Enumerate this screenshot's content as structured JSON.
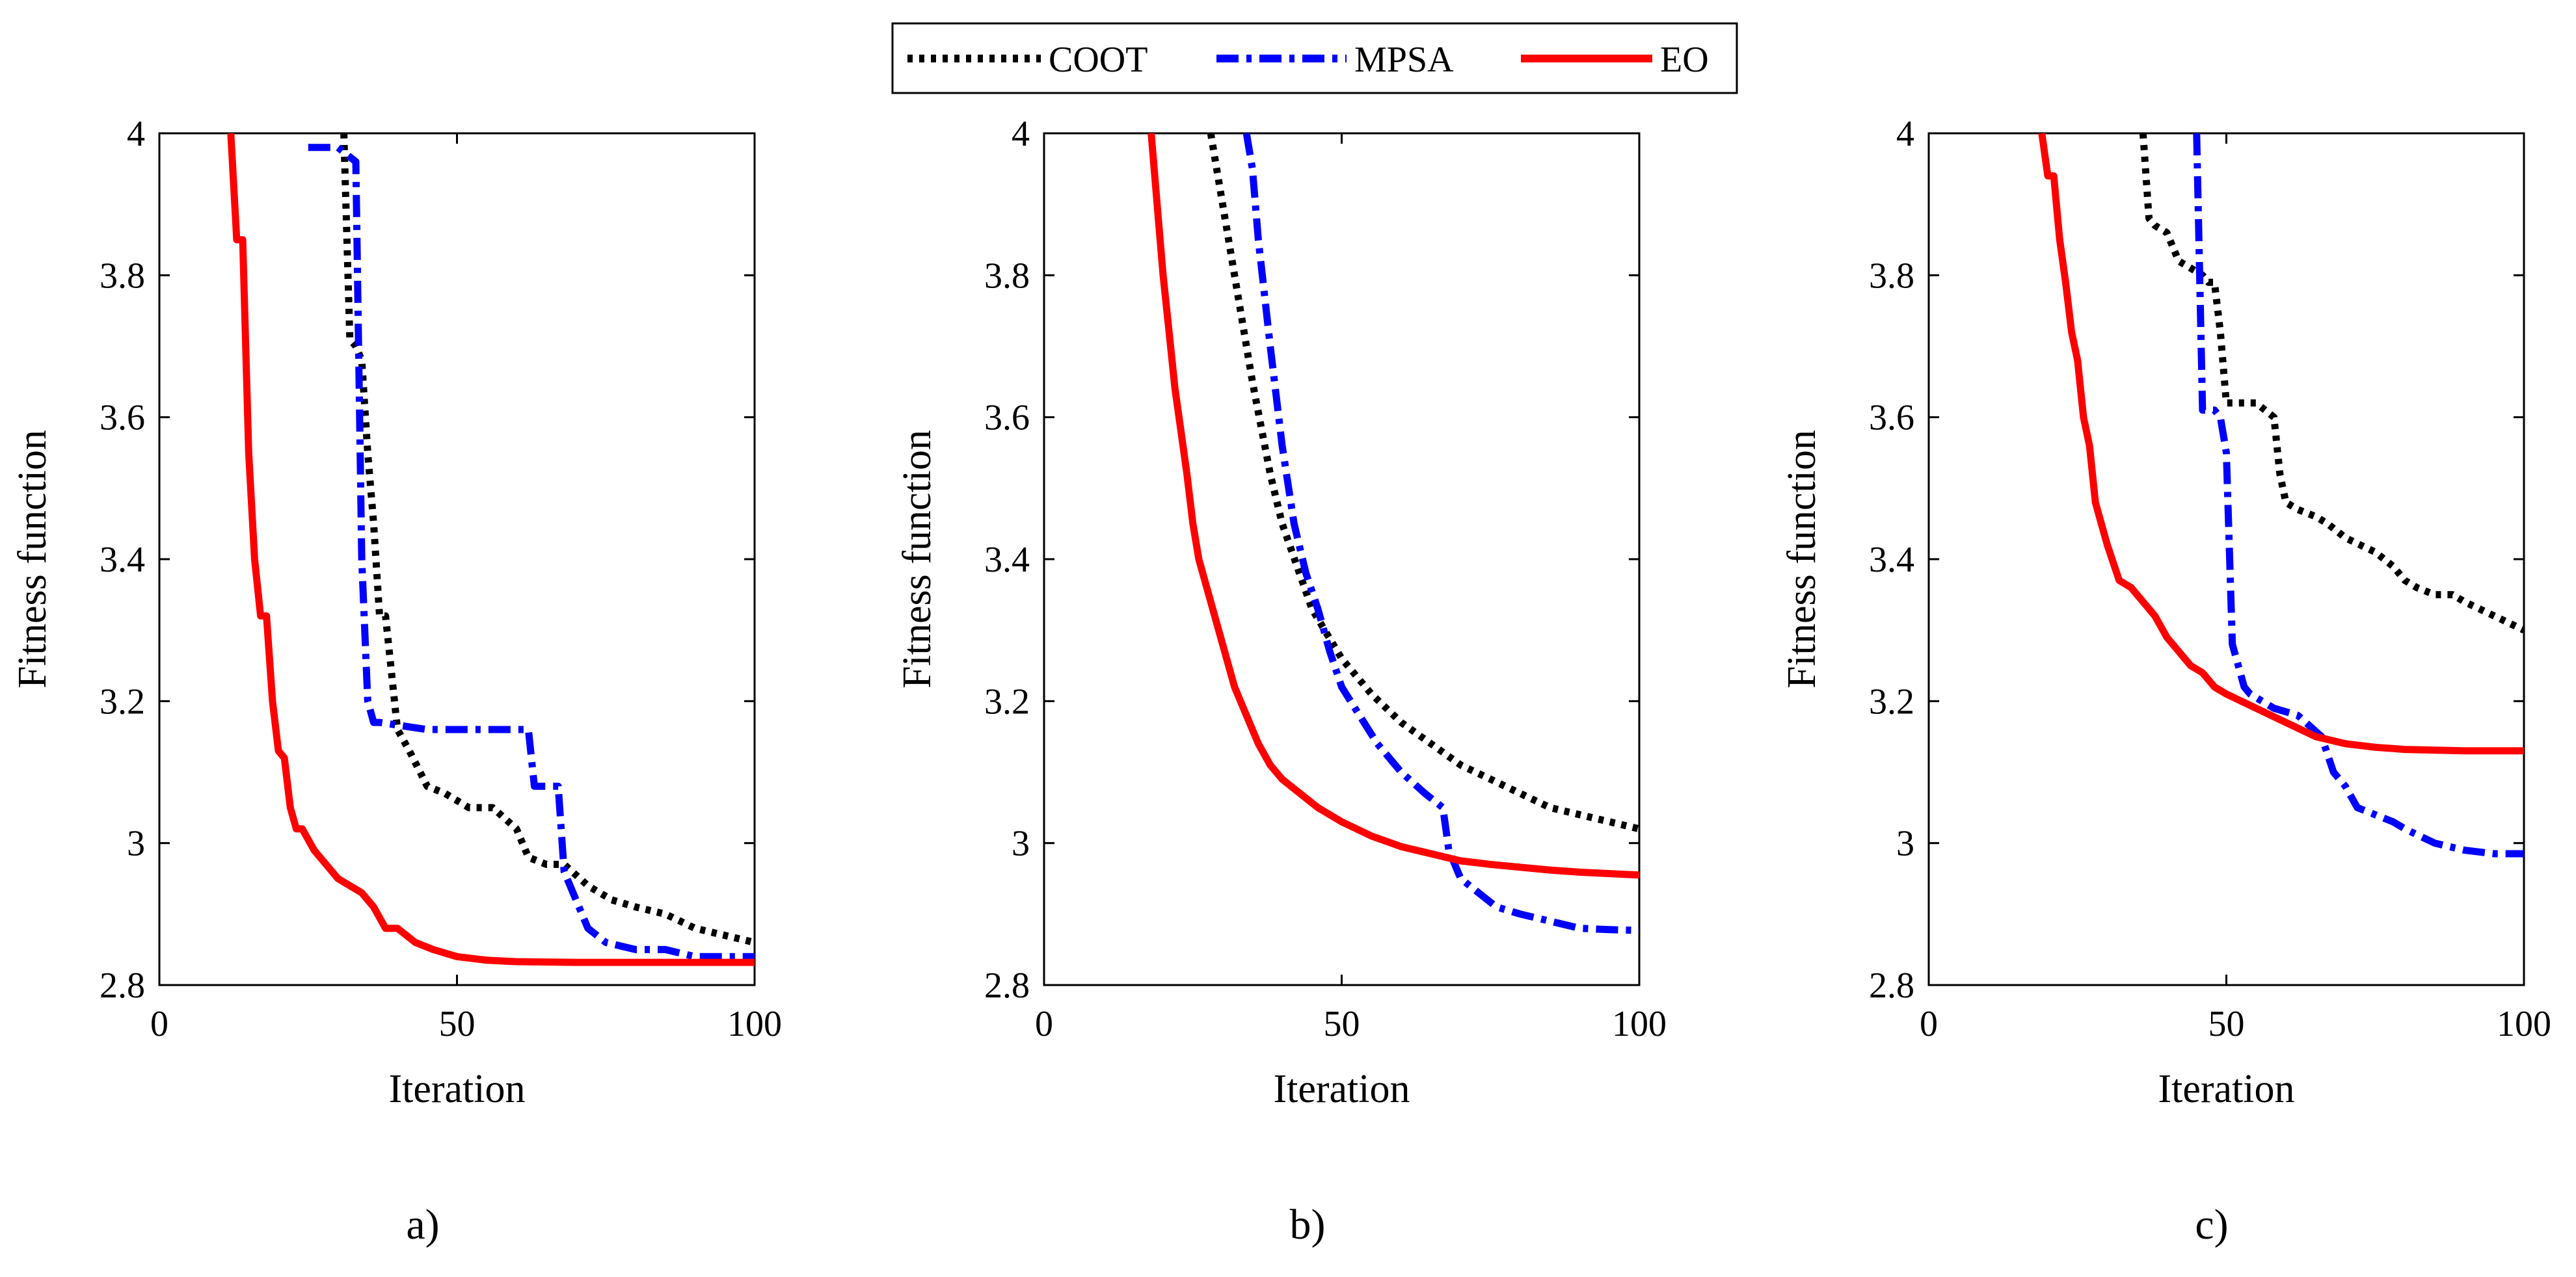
{
  "legend": {
    "items": [
      {
        "label": "COOT",
        "color": "#000000",
        "style": "dotted"
      },
      {
        "label": "MPSA",
        "color": "#0000ff",
        "style": "dashdot"
      },
      {
        "label": "EO",
        "color": "#ff0000",
        "style": "solid"
      }
    ]
  },
  "chart_data": [
    {
      "type": "line",
      "caption": "a)",
      "xlabel": "Iteration",
      "ylabel": "Fitness function",
      "xlim": [
        0,
        100
      ],
      "ylim": [
        2.8,
        4
      ],
      "xticks": [
        "0",
        "50",
        "100"
      ],
      "yticks": [
        "2.8",
        "3",
        "3.2",
        "3.4",
        "3.6",
        "3.8",
        "4"
      ],
      "grid": false,
      "series": [
        {
          "name": "COOT",
          "color": "#000000",
          "style": "dotted",
          "x": [
            31,
            32,
            33,
            34,
            35,
            36,
            37,
            38,
            40,
            42,
            45,
            48,
            52,
            56,
            60,
            62,
            65,
            68,
            72,
            76,
            80,
            85,
            90,
            95,
            100
          ],
          "y": [
            4.0,
            3.71,
            3.7,
            3.68,
            3.55,
            3.45,
            3.32,
            3.32,
            3.16,
            3.13,
            3.08,
            3.07,
            3.05,
            3.05,
            3.02,
            2.98,
            2.97,
            2.97,
            2.94,
            2.92,
            2.91,
            2.9,
            2.88,
            2.87,
            2.86
          ]
        },
        {
          "name": "MPSA",
          "color": "#0000ff",
          "style": "dashdot",
          "x": [
            25,
            26,
            30,
            33,
            34,
            35,
            36,
            37,
            45,
            50,
            55,
            62,
            63,
            67,
            68,
            70,
            72,
            75,
            80,
            85,
            90,
            95,
            100
          ],
          "y": [
            3.98,
            3.98,
            3.98,
            3.96,
            3.4,
            3.2,
            3.17,
            3.17,
            3.16,
            3.16,
            3.16,
            3.16,
            3.08,
            3.08,
            2.96,
            2.92,
            2.88,
            2.86,
            2.85,
            2.85,
            2.84,
            2.84,
            2.84
          ]
        },
        {
          "name": "EO",
          "color": "#ff0000",
          "style": "solid",
          "x": [
            12,
            13,
            14,
            15,
            16,
            17,
            18,
            19,
            20,
            21,
            22,
            23,
            24,
            26,
            28,
            30,
            32,
            34,
            36,
            38,
            40,
            43,
            46,
            50,
            55,
            60,
            70,
            80,
            90,
            100
          ],
          "y": [
            4.0,
            3.85,
            3.85,
            3.55,
            3.4,
            3.32,
            3.32,
            3.2,
            3.13,
            3.12,
            3.05,
            3.02,
            3.02,
            2.99,
            2.97,
            2.95,
            2.94,
            2.93,
            2.91,
            2.88,
            2.88,
            2.86,
            2.85,
            2.84,
            2.835,
            2.833,
            2.832,
            2.832,
            2.832,
            2.832
          ]
        }
      ]
    },
    {
      "type": "line",
      "caption": "b)",
      "xlabel": "Iteration",
      "ylabel": "Fitness function",
      "xlim": [
        0,
        100
      ],
      "ylim": [
        2.8,
        4
      ],
      "xticks": [
        "0",
        "50",
        "100"
      ],
      "yticks": [
        "2.8",
        "3",
        "3.2",
        "3.4",
        "3.6",
        "3.8",
        "4"
      ],
      "grid": false,
      "series": [
        {
          "name": "COOT",
          "color": "#000000",
          "style": "dotted",
          "x": [
            28,
            30,
            32,
            35,
            38,
            40,
            45,
            50,
            55,
            60,
            65,
            70,
            75,
            80,
            85,
            90,
            95,
            100
          ],
          "y": [
            4.0,
            3.9,
            3.8,
            3.65,
            3.52,
            3.45,
            3.33,
            3.26,
            3.21,
            3.17,
            3.14,
            3.11,
            3.09,
            3.07,
            3.05,
            3.04,
            3.03,
            3.02
          ]
        },
        {
          "name": "MPSA",
          "color": "#0000ff",
          "style": "dashdot",
          "x": [
            34,
            35,
            36,
            38,
            40,
            42,
            44,
            46,
            48,
            50,
            53,
            56,
            60,
            64,
            67,
            68,
            70,
            73,
            76,
            80,
            85,
            90,
            95,
            100
          ],
          "y": [
            4.0,
            3.95,
            3.85,
            3.7,
            3.56,
            3.45,
            3.38,
            3.33,
            3.27,
            3.22,
            3.18,
            3.14,
            3.1,
            3.07,
            3.05,
            2.99,
            2.95,
            2.93,
            2.91,
            2.9,
            2.89,
            2.88,
            2.878,
            2.877
          ]
        },
        {
          "name": "EO",
          "color": "#ff0000",
          "style": "solid",
          "x": [
            18,
            19,
            20,
            21,
            22,
            23,
            24,
            25,
            26,
            28,
            30,
            32,
            34,
            36,
            38,
            40,
            43,
            46,
            50,
            55,
            60,
            65,
            70,
            75,
            80,
            85,
            90,
            95,
            100
          ],
          "y": [
            4.0,
            3.9,
            3.8,
            3.72,
            3.64,
            3.58,
            3.52,
            3.45,
            3.4,
            3.34,
            3.28,
            3.22,
            3.18,
            3.14,
            3.11,
            3.09,
            3.07,
            3.05,
            3.03,
            3.01,
            2.995,
            2.985,
            2.975,
            2.97,
            2.966,
            2.962,
            2.959,
            2.957,
            2.955
          ]
        }
      ]
    },
    {
      "type": "line",
      "caption": "c)",
      "xlabel": "Iteration",
      "ylabel": "Fitness function",
      "xlim": [
        0,
        100
      ],
      "ylim": [
        2.8,
        4
      ],
      "xticks": [
        "0",
        "50",
        "100"
      ],
      "yticks": [
        "2.8",
        "3",
        "3.2",
        "3.4",
        "3.6",
        "3.8",
        "4"
      ],
      "grid": false,
      "series": [
        {
          "name": "COOT",
          "color": "#000000",
          "style": "dotted",
          "x": [
            36,
            37,
            38,
            40,
            42,
            44,
            46,
            47,
            48,
            49,
            50,
            52,
            55,
            58,
            59,
            60,
            62,
            65,
            67,
            70,
            75,
            78,
            80,
            82,
            85,
            88,
            90,
            95,
            100
          ],
          "y": [
            4.0,
            3.88,
            3.87,
            3.86,
            3.82,
            3.81,
            3.8,
            3.79,
            3.79,
            3.72,
            3.62,
            3.62,
            3.62,
            3.6,
            3.52,
            3.48,
            3.47,
            3.46,
            3.45,
            3.43,
            3.41,
            3.39,
            3.37,
            3.36,
            3.35,
            3.35,
            3.34,
            3.32,
            3.3
          ]
        },
        {
          "name": "MPSA",
          "color": "#0000ff",
          "style": "dashdot",
          "x": [
            45,
            46,
            48,
            49,
            50,
            51,
            52,
            53,
            54,
            58,
            62,
            66,
            68,
            70,
            72,
            75,
            78,
            80,
            85,
            90,
            95,
            100
          ],
          "y": [
            4.0,
            3.61,
            3.61,
            3.6,
            3.55,
            3.28,
            3.25,
            3.22,
            3.21,
            3.19,
            3.18,
            3.15,
            3.1,
            3.08,
            3.05,
            3.04,
            3.03,
            3.02,
            3.0,
            2.99,
            2.985,
            2.985
          ]
        },
        {
          "name": "EO",
          "color": "#ff0000",
          "style": "solid",
          "x": [
            19,
            20,
            21,
            22,
            23,
            24,
            25,
            26,
            27,
            28,
            29,
            30,
            32,
            34,
            36,
            38,
            40,
            42,
            44,
            46,
            48,
            50,
            55,
            60,
            65,
            70,
            75,
            80,
            90,
            100
          ],
          "y": [
            4.0,
            3.94,
            3.94,
            3.85,
            3.79,
            3.72,
            3.68,
            3.6,
            3.56,
            3.48,
            3.45,
            3.42,
            3.37,
            3.36,
            3.34,
            3.32,
            3.29,
            3.27,
            3.25,
            3.24,
            3.22,
            3.21,
            3.19,
            3.17,
            3.15,
            3.14,
            3.135,
            3.132,
            3.13,
            3.13
          ]
        }
      ]
    }
  ]
}
